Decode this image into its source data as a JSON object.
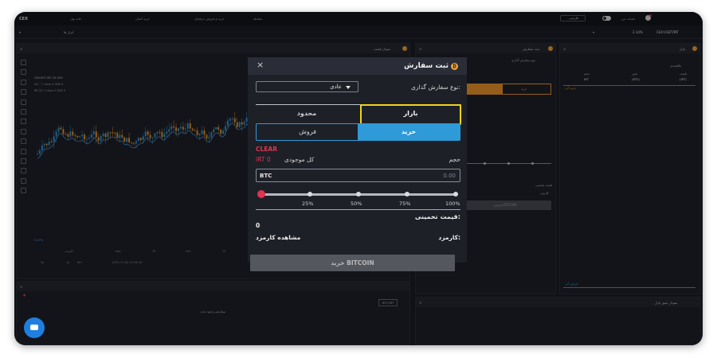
{
  "topbar": {
    "logo": "CEX",
    "links": [
      "خانه پول",
      "خرید آسان",
      "خرید و فروش حرفه‌ای",
      "معامله"
    ],
    "lang": "فارسی",
    "account": "حساب من"
  },
  "toolbar": {
    "tools_label": "ابزار ها",
    "pair": "CEX:USDT/IRT",
    "pair_change": "2.14%"
  },
  "chart_panel": {
    "title": "نمودار قیمت",
    "symbol_line": "CEX:BTC IRT 1D CEX",
    "legend_1": "Vol · 7 close 0 SMA 9",
    "legend_2": "BB 20 2 close 0 SMA 9",
    "xaxis": [
      "اگوست",
      "Sep",
      "15",
      "Oct",
      "15"
    ],
    "footer": "(UTC+3:30) 12:04:20",
    "range": [
      "5y",
      "1y",
      "6m"
    ],
    "pct": "5.47%"
  },
  "bottom_left": {
    "empty_msg": "سفارشی وجود ندارد",
    "filter_btn": "BTC/IRT"
  },
  "order_panel_bg": {
    "title": "ثبت سفارش",
    "order_type_label": "نوع سفارش گذاری",
    "sell_tab": "خرید",
    "submit": "فروش BITCOIN",
    "estimate": "قیمت تخمینی",
    "fee": "کارمزد"
  },
  "market_panel": {
    "title": "بازار",
    "favorites": "علاقمندی",
    "col_price": "قیمت",
    "col_change": "تغییر",
    "col_volume": "حجم",
    "row_pair_1": "(IRT)",
    "row_pair_2": "(BTC)",
    "row_pair_3": "IRT",
    "section_1": "خرید آنی",
    "section_2": "فروش آنی"
  },
  "depth_panel": {
    "title": "نمودار عمق بازار"
  },
  "modal": {
    "title": "ثبت سفارش",
    "close": "×",
    "order_type_label": "نوع سفارش گذاری:",
    "order_type_value": "عادی",
    "tab_limit": "محدود",
    "tab_market": "بازار",
    "side_sell": "فروش",
    "side_buy": "خرید",
    "clear": "CLEAR",
    "balance_label": "کل موجودی",
    "balance_value": "IRT 0",
    "volume_label": "حجم",
    "volume_unit": "BTC",
    "volume_value": "0.00",
    "percent_marks": [
      "25%",
      "50%",
      "75%",
      "100%"
    ],
    "estimate_label": "قیمت تخمینی:",
    "estimate_value": "0",
    "fee_label": "کارمزد:",
    "fee_link": "مشاهده کارمزد",
    "submit": "خرید BITCOIN"
  },
  "colors": {
    "accent_blue": "#2f9ad8",
    "danger": "#e0344f",
    "highlight": "#f0d21e",
    "bitcoin": "#f0a33a"
  }
}
